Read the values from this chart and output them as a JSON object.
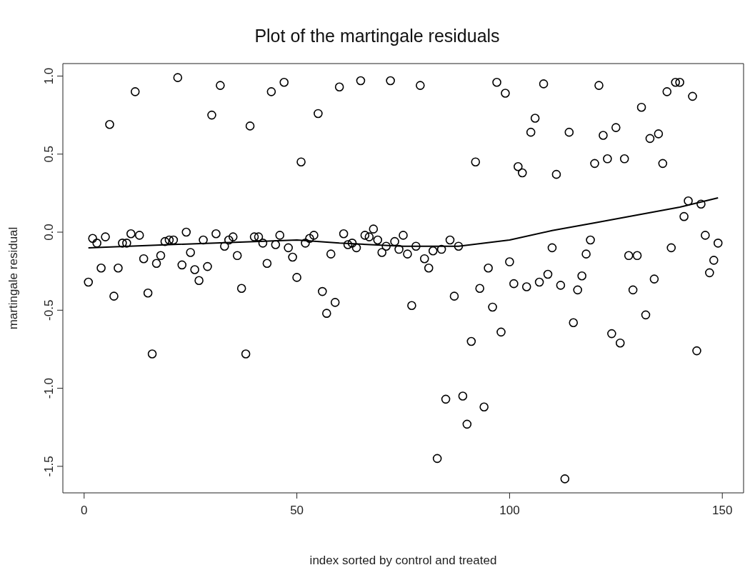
{
  "chart_data": {
    "type": "scatter",
    "title": "Plot of the martingale residuals",
    "xlabel": "index sorted by control and treated",
    "ylabel": "martingale residual",
    "xlim": [
      -5,
      155
    ],
    "xticks": [
      0,
      50,
      100,
      150
    ],
    "ylim": [
      -1.67,
      1.08
    ],
    "yticks": [
      {
        "value": -1.5,
        "label": "-1.5"
      },
      {
        "value": -1,
        "label": "-1.0"
      },
      {
        "value": -0.5,
        "label": "-0.5"
      },
      {
        "value": 0,
        "label": "0.0"
      },
      {
        "value": 0.5,
        "label": "0.5"
      },
      {
        "value": 1,
        "label": "1.0"
      }
    ],
    "grid": false,
    "series": [
      {
        "color": "#000000",
        "marker": "circle",
        "x": [
          1,
          2,
          3,
          4,
          5,
          6,
          7,
          8,
          9,
          10,
          11,
          12,
          13,
          14,
          15,
          16,
          17,
          18,
          19,
          20,
          21,
          22,
          23,
          24,
          25,
          26,
          27,
          28,
          29,
          30,
          31,
          32,
          33,
          34,
          35,
          36,
          37,
          38,
          39,
          40,
          41,
          42,
          43,
          44,
          45,
          46,
          47,
          48,
          49,
          50,
          51,
          52,
          53,
          54,
          55,
          56,
          57,
          58,
          59,
          60,
          61,
          62,
          63,
          64,
          65,
          66,
          67,
          68,
          69,
          70,
          71,
          72,
          73,
          74,
          75,
          76,
          77,
          78,
          79,
          80,
          81,
          82,
          83,
          84,
          85,
          86,
          87,
          88,
          89,
          90,
          91,
          92,
          93,
          94,
          95,
          96,
          97,
          98,
          99,
          100,
          101,
          102,
          103,
          104,
          105,
          106,
          107,
          108,
          109,
          110,
          111,
          112,
          113,
          114,
          115,
          116,
          117,
          118,
          119,
          120,
          121,
          122,
          123,
          124,
          125,
          126,
          127,
          128,
          129,
          130,
          131,
          132,
          133,
          134,
          135,
          136,
          137,
          138,
          139,
          140,
          141,
          142,
          143,
          144,
          145,
          146,
          147,
          148,
          149
        ],
        "values": [
          -0.32,
          -0.04,
          -0.07,
          -0.23,
          -0.03,
          0.69,
          -0.41,
          -0.23,
          -0.07,
          -0.07,
          -0.01,
          0.9,
          -0.02,
          -0.17,
          -0.39,
          -0.78,
          -0.2,
          -0.15,
          -0.06,
          -0.05,
          -0.05,
          0.99,
          -0.21,
          0,
          -0.13,
          -0.24,
          -0.31,
          -0.05,
          -0.22,
          0.75,
          -0.01,
          0.94,
          -0.09,
          -0.05,
          -0.03,
          -0.15,
          -0.36,
          -0.78,
          0.68,
          -0.03,
          -0.03,
          -0.07,
          -0.2,
          0.9,
          -0.08,
          -0.02,
          0.96,
          -0.1,
          -0.16,
          -0.29,
          0.45,
          -0.07,
          -0.04,
          -0.02,
          0.76,
          -0.38,
          -0.52,
          -0.14,
          -0.45,
          0.93,
          -0.01,
          -0.08,
          -0.07,
          -0.1,
          0.97,
          -0.02,
          -0.03,
          0.02,
          -0.05,
          -0.13,
          -0.09,
          0.97,
          -0.06,
          -0.11,
          -0.02,
          -0.14,
          -0.47,
          -0.09,
          0.94,
          -0.17,
          -0.23,
          -0.12,
          -1.45,
          -0.11,
          -1.07,
          -0.05,
          -0.41,
          -0.09,
          -1.05,
          -1.23,
          -0.7,
          0.45,
          -0.36,
          -1.12,
          -0.23,
          -0.48,
          0.96,
          -0.64,
          0.89,
          -0.19,
          -0.33,
          0.42,
          0.38,
          -0.35,
          0.64,
          0.73,
          -0.32,
          0.95,
          -0.27,
          -0.1,
          0.37,
          -0.34,
          -1.58,
          0.64,
          -0.58,
          -0.37,
          -0.28,
          -0.14,
          -0.05,
          0.44,
          0.94,
          0.62,
          0.47,
          -0.65,
          0.67,
          -0.71,
          0.47,
          -0.15,
          -0.37,
          -0.15,
          0.8,
          -0.53,
          0.6,
          -0.3,
          0.63,
          0.44,
          0.9,
          -0.1,
          0.96,
          0.96,
          0.1,
          0.2,
          0.87,
          -0.76,
          0.18,
          -0.02,
          -0.26,
          -0.18,
          -0.07
        ]
      },
      {
        "type": "line",
        "color": "#000000",
        "marker": "none",
        "line_style": "solid",
        "x": [
          1,
          20,
          40,
          50,
          60,
          75,
          88,
          100,
          110,
          120,
          130,
          140,
          149
        ],
        "values": [
          -0.1,
          -0.08,
          -0.06,
          -0.05,
          -0.07,
          -0.09,
          -0.09,
          -0.05,
          0.01,
          0.06,
          0.11,
          0.16,
          0.22
        ]
      }
    ]
  }
}
